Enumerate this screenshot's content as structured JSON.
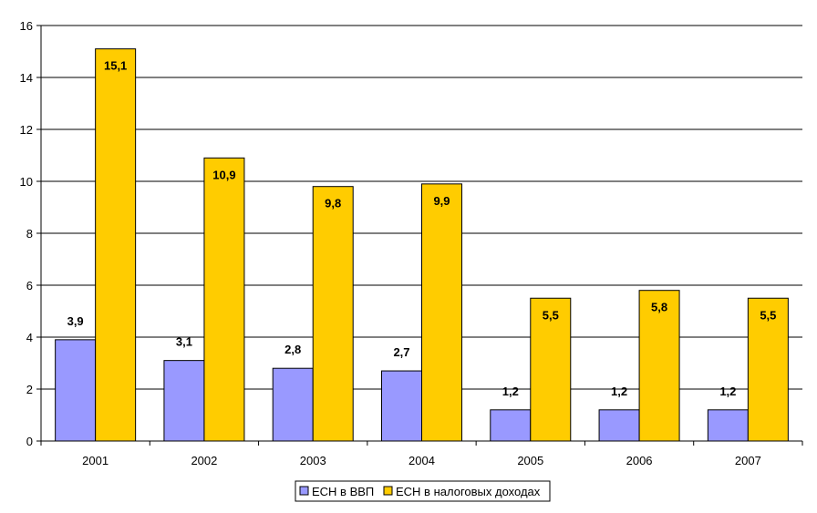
{
  "chart_data": {
    "type": "bar",
    "title": "",
    "xlabel": "",
    "ylabel": "",
    "categories": [
      "2001",
      "2002",
      "2003",
      "2004",
      "2005",
      "2006",
      "2007"
    ],
    "ylim": [
      0,
      16
    ],
    "yticks": [
      0,
      2,
      4,
      6,
      8,
      10,
      12,
      14,
      16
    ],
    "grid": true,
    "legend_position": "bottom",
    "series": [
      {
        "name": "ЕСН в ВВП",
        "color": "#9999FF",
        "values": [
          3.9,
          3.1,
          2.8,
          2.7,
          1.2,
          1.2,
          1.2
        ],
        "labels": [
          "3,9",
          "3,1",
          "2,8",
          "2,7",
          "1,2",
          "1,2",
          "1,2"
        ]
      },
      {
        "name": "ЕСН в налоговых доходах",
        "color": "#FFCC00",
        "values": [
          15.1,
          10.9,
          9.8,
          9.9,
          5.5,
          5.8,
          5.5
        ],
        "labels": [
          "15,1",
          "10,9",
          "9,8",
          "9,9",
          "5,5",
          "5,8",
          "5,5"
        ]
      }
    ]
  }
}
